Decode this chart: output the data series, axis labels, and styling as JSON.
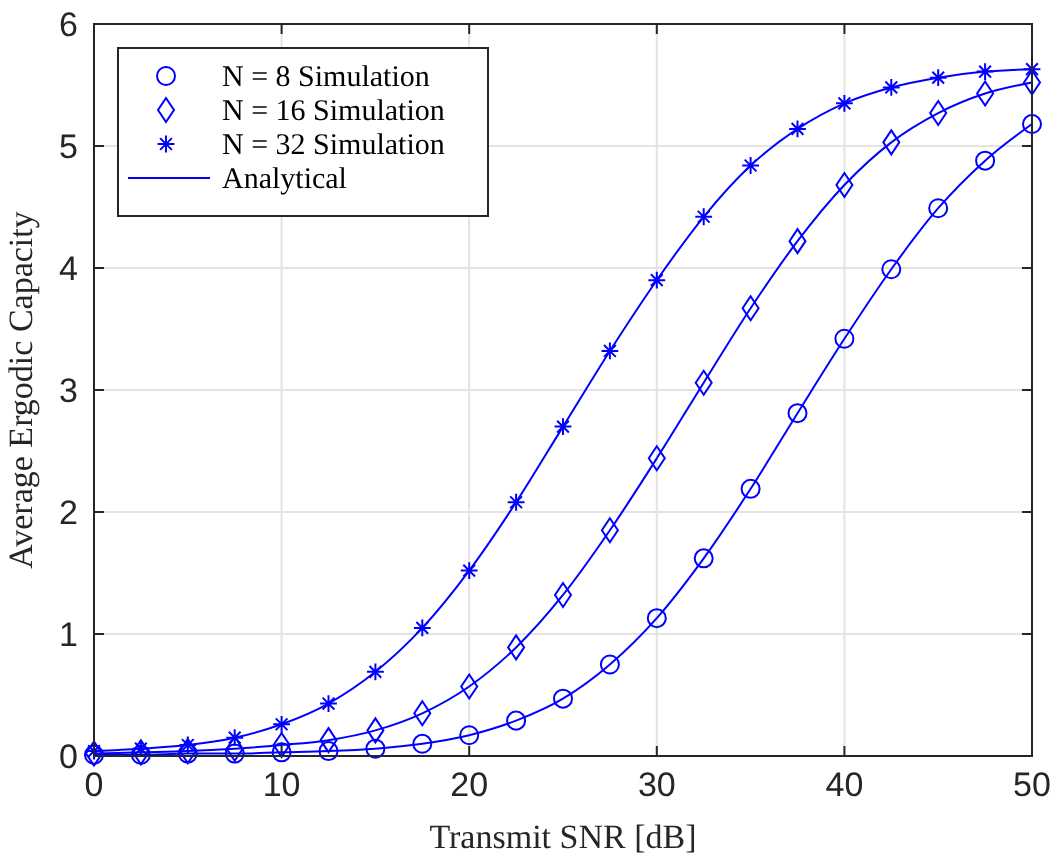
{
  "chart_data": {
    "type": "line",
    "xlabel": "Transmit SNR [dB]",
    "ylabel": "Average Ergodic Capacity",
    "x": [
      0,
      2.5,
      5,
      7.5,
      10,
      12.5,
      15,
      17.5,
      20,
      22.5,
      25,
      27.5,
      30,
      32.5,
      35,
      37.5,
      40,
      42.5,
      45,
      47.5,
      50
    ],
    "xlim": [
      0,
      50
    ],
    "xticks": [
      0,
      10,
      20,
      30,
      40,
      50
    ],
    "ylim": [
      0,
      6
    ],
    "yticks": [
      0,
      1,
      2,
      3,
      4,
      5,
      6
    ],
    "grid": true,
    "legend": "top left",
    "series": [
      {
        "name": "N = 8 Simulation",
        "type": "scatter",
        "marker": "circle",
        "color": "#0000ff",
        "values": [
          0.01,
          0.01,
          0.02,
          0.02,
          0.03,
          0.04,
          0.06,
          0.1,
          0.17,
          0.29,
          0.47,
          0.75,
          1.13,
          1.62,
          2.19,
          2.81,
          3.42,
          3.99,
          4.49,
          4.88,
          5.18
        ]
      },
      {
        "name": "N = 16 Simulation",
        "type": "scatter",
        "marker": "diamond",
        "color": "#0000ff",
        "values": [
          0.02,
          0.03,
          0.04,
          0.06,
          0.09,
          0.13,
          0.21,
          0.35,
          0.57,
          0.89,
          1.32,
          1.85,
          2.44,
          3.06,
          3.67,
          4.22,
          4.68,
          5.03,
          5.27,
          5.43,
          5.52
        ]
      },
      {
        "name": "N = 32 Simulation",
        "type": "scatter",
        "marker": "cross",
        "color": "#0000ff",
        "values": [
          0.04,
          0.06,
          0.09,
          0.15,
          0.26,
          0.43,
          0.69,
          1.05,
          1.52,
          2.08,
          2.7,
          3.32,
          3.9,
          4.42,
          4.84,
          5.14,
          5.35,
          5.48,
          5.56,
          5.61,
          5.63
        ]
      },
      {
        "name": "Analytical",
        "marker": "none",
        "color": "#0000ff",
        "values": [
          0.01,
          0.01,
          0.02,
          0.02,
          0.03,
          0.04,
          0.06,
          0.1,
          0.17,
          0.29,
          0.47,
          0.75,
          1.13,
          1.62,
          2.19,
          2.81,
          3.42,
          3.99,
          4.49,
          4.88,
          5.18
        ]
      },
      {
        "marker": "none",
        "color": "#0000ff",
        "values": [
          0.02,
          0.03,
          0.04,
          0.06,
          0.09,
          0.13,
          0.21,
          0.35,
          0.57,
          0.89,
          1.32,
          1.85,
          2.44,
          3.06,
          3.67,
          4.22,
          4.68,
          5.03,
          5.27,
          5.43,
          5.52
        ]
      },
      {
        "marker": "none",
        "color": "#0000ff",
        "values": [
          0.04,
          0.06,
          0.09,
          0.15,
          0.26,
          0.43,
          0.69,
          1.05,
          1.52,
          2.08,
          2.7,
          3.32,
          3.9,
          4.42,
          4.84,
          5.14,
          5.35,
          5.48,
          5.56,
          5.61,
          5.63
        ]
      }
    ]
  }
}
